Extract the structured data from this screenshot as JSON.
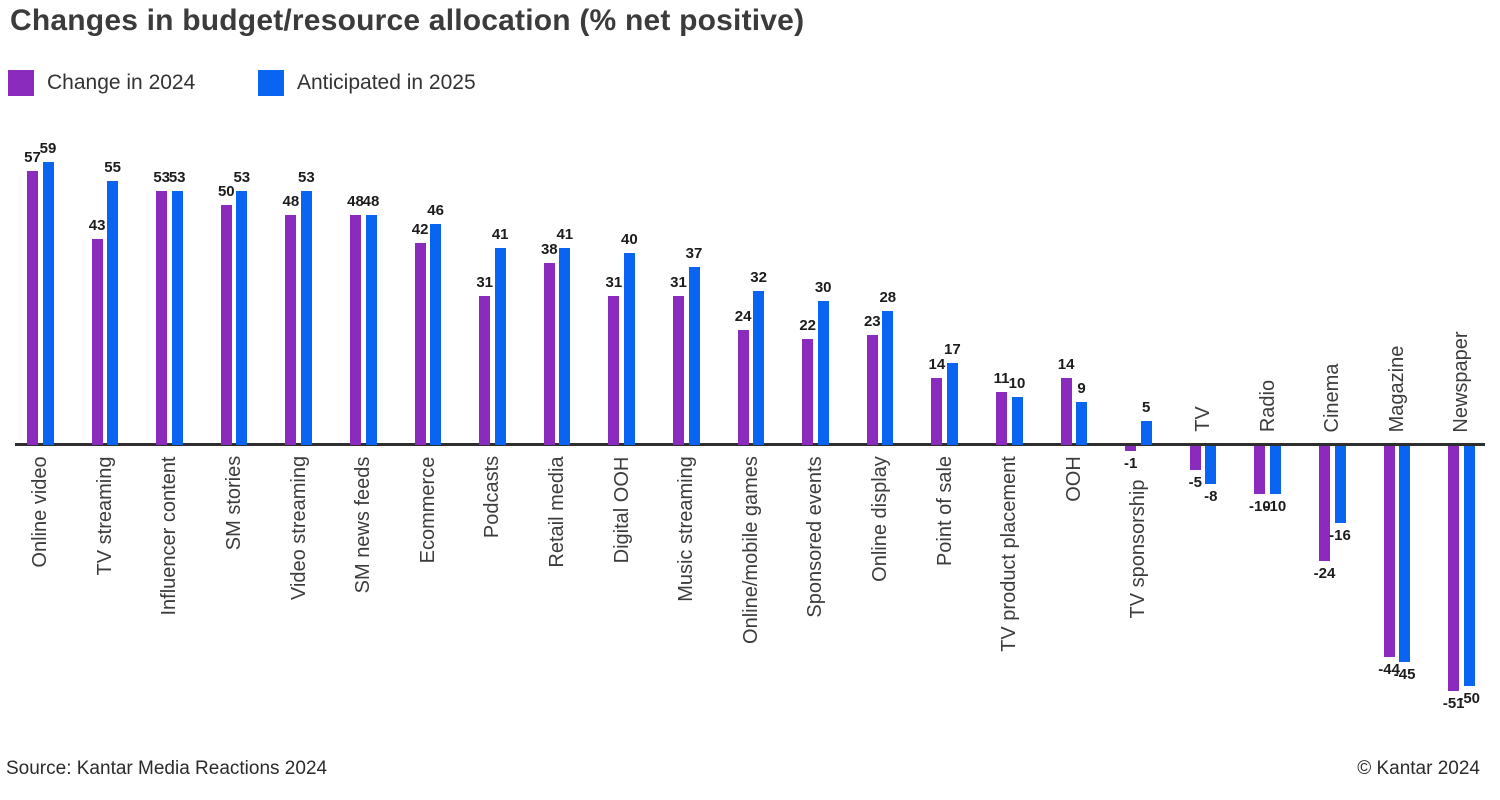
{
  "header": {
    "title": "Changes in budget/resource allocation (% net positive)"
  },
  "chart_data": {
    "type": "bar",
    "grouped": true,
    "orientation": "vertical",
    "title": "Changes in budget/resource allocation (% net positive)",
    "xlabel": "",
    "ylabel": "",
    "ylim": [
      -60,
      65
    ],
    "grid": false,
    "legend_position": "top-left",
    "baseline": 0,
    "categories": [
      "Online video",
      "TV streaming",
      "Influencer content",
      "SM stories",
      "Video streaming",
      "SM news feeds",
      "Ecommerce",
      "Podcasts",
      "Retail media",
      "Digital OOH",
      "Music streaming",
      "Online/mobile games",
      "Sponsored events",
      "Online display",
      "Point of sale",
      "TV product placement",
      "OOH",
      "TV sponsorship",
      "TV",
      "Radio",
      "Cinema",
      "Magazine",
      "Newspaper"
    ],
    "series": [
      {
        "key": "2024",
        "name": "Change in 2024",
        "color": "#8a2bbe",
        "values": [
          57,
          43,
          53,
          50,
          48,
          48,
          42,
          31,
          38,
          31,
          31,
          24,
          22,
          23,
          14,
          11,
          14,
          -1,
          -5,
          -10,
          -24,
          -44,
          -51
        ]
      },
      {
        "key": "2025",
        "name": "Anticipated in 2025",
        "color": "#0a64f2",
        "values": [
          59,
          55,
          53,
          53,
          53,
          48,
          46,
          41,
          41,
          40,
          37,
          32,
          30,
          28,
          17,
          10,
          9,
          5,
          -8,
          -10,
          -16,
          -45,
          -50
        ]
      }
    ]
  },
  "colors": {
    "axis": "#2e2e2e",
    "title_text": "#3b3b3b",
    "category_text": "#3c3c3c",
    "value_text": "#1c1c1c"
  },
  "footer": {
    "source": "Source: Kantar Media Reactions 2024",
    "copyright": "© Kantar 2024"
  }
}
